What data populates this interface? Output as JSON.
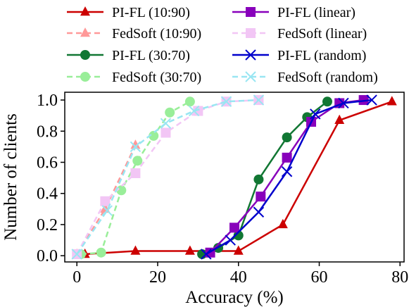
{
  "chart_data": {
    "type": "line",
    "xlabel": "Accuracy (%)",
    "ylabel": "Number of clients",
    "xlim": [
      -3,
      81
    ],
    "ylim": [
      -0.04,
      1.05
    ],
    "xticks": [
      "0",
      "20",
      "40",
      "60",
      "80"
    ],
    "yticks": [
      "0.0",
      "0.2",
      "0.4",
      "0.6",
      "0.8",
      "1.0"
    ],
    "grid": false,
    "legend_position": "top (two columns, above plot)",
    "series": [
      {
        "name": "PI-FL (10:90)",
        "color": "#cc0000",
        "marker": "triangle",
        "dashed": false,
        "x": [
          2,
          14.5,
          28,
          40,
          51,
          65,
          78
        ],
        "y": [
          0.01,
          0.03,
          0.03,
          0.03,
          0.2,
          0.87,
          0.99
        ]
      },
      {
        "name": "FedSoft (10:90)",
        "color": "#ff9999",
        "marker": "triangle",
        "dashed": true,
        "x": [
          0,
          7,
          14.5
        ],
        "y": [
          0.01,
          0.3,
          0.71
        ]
      },
      {
        "name": "PI-FL (30:70)",
        "color": "#117733",
        "marker": "circle",
        "dashed": false,
        "x": [
          31,
          35,
          40,
          45,
          52,
          57,
          62
        ],
        "y": [
          0.01,
          0.05,
          0.13,
          0.49,
          0.76,
          0.89,
          0.99
        ]
      },
      {
        "name": "FedSoft (30:70)",
        "color": "#99ee99",
        "marker": "circle",
        "dashed": true,
        "x": [
          1,
          6,
          11,
          15,
          19,
          23,
          28
        ],
        "y": [
          0.01,
          0.02,
          0.42,
          0.61,
          0.77,
          0.92,
          0.99
        ]
      },
      {
        "name": "PI-FL (linear)",
        "color": "#8800bb",
        "marker": "square",
        "dashed": false,
        "x": [
          33,
          39,
          45.5,
          52,
          58,
          65,
          71
        ],
        "y": [
          0.02,
          0.18,
          0.38,
          0.63,
          0.86,
          0.98,
          1.0
        ]
      },
      {
        "name": "FedSoft (linear)",
        "color": "#f2c6f5",
        "marker": "square",
        "dashed": true,
        "x": [
          0,
          7,
          14.5,
          22,
          30,
          37,
          45
        ],
        "y": [
          0.01,
          0.35,
          0.53,
          0.79,
          0.93,
          0.99,
          1.0
        ]
      },
      {
        "name": "PI-FL (random)",
        "color": "#0000cc",
        "marker": "x",
        "dashed": false,
        "x": [
          32,
          38,
          45,
          52,
          59,
          66,
          73
        ],
        "y": [
          0.01,
          0.1,
          0.28,
          0.54,
          0.91,
          0.98,
          1.0
        ]
      },
      {
        "name": "FedSoft (random)",
        "color": "#99e6f2",
        "marker": "x",
        "dashed": true,
        "x": [
          0,
          7.5,
          14.5,
          22,
          29,
          37,
          45
        ],
        "y": [
          0.01,
          0.29,
          0.7,
          0.85,
          0.93,
          0.99,
          1.0
        ]
      }
    ]
  }
}
